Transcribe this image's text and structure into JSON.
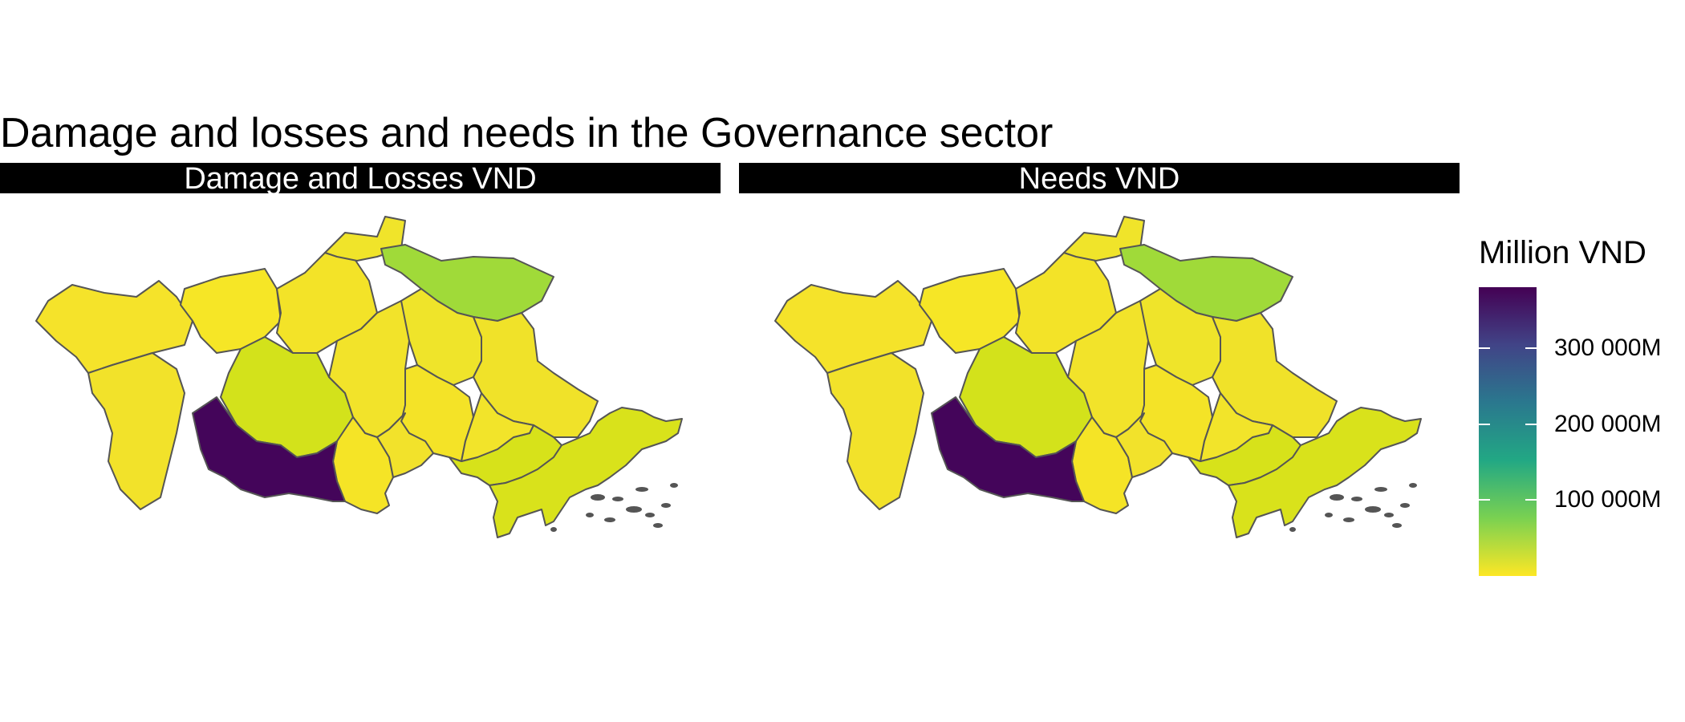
{
  "title": "Damage and losses and needs in the Governance sector",
  "panels": [
    {
      "label": "Damage and Losses VND"
    },
    {
      "label": "Needs VND"
    }
  ],
  "legend": {
    "title": "Million VND",
    "ticks": [
      {
        "label": "100 000M",
        "value": 100000
      },
      {
        "label": "200 000M",
        "value": 200000
      },
      {
        "label": "300 000M",
        "value": 300000
      }
    ],
    "range": [
      0,
      380000
    ],
    "colors": [
      "#FDE725",
      "#7AD151",
      "#22A884",
      "#2A788E",
      "#414487",
      "#440154"
    ]
  },
  "map": {
    "border_color": "#555555",
    "province_colors": [
      "#F5E32A",
      "#F2E22A",
      "#F6E626",
      "#F3E328",
      "#F0E42A",
      "#D3E21B",
      "#A0DA39",
      "#F2E32A",
      "#EFE42A",
      "#F4E327",
      "#F0E229",
      "#F5E426",
      "#F2E22B",
      "#D7E21A",
      "#F2E42A",
      "#D9E21B",
      "#44055A"
    ]
  }
}
